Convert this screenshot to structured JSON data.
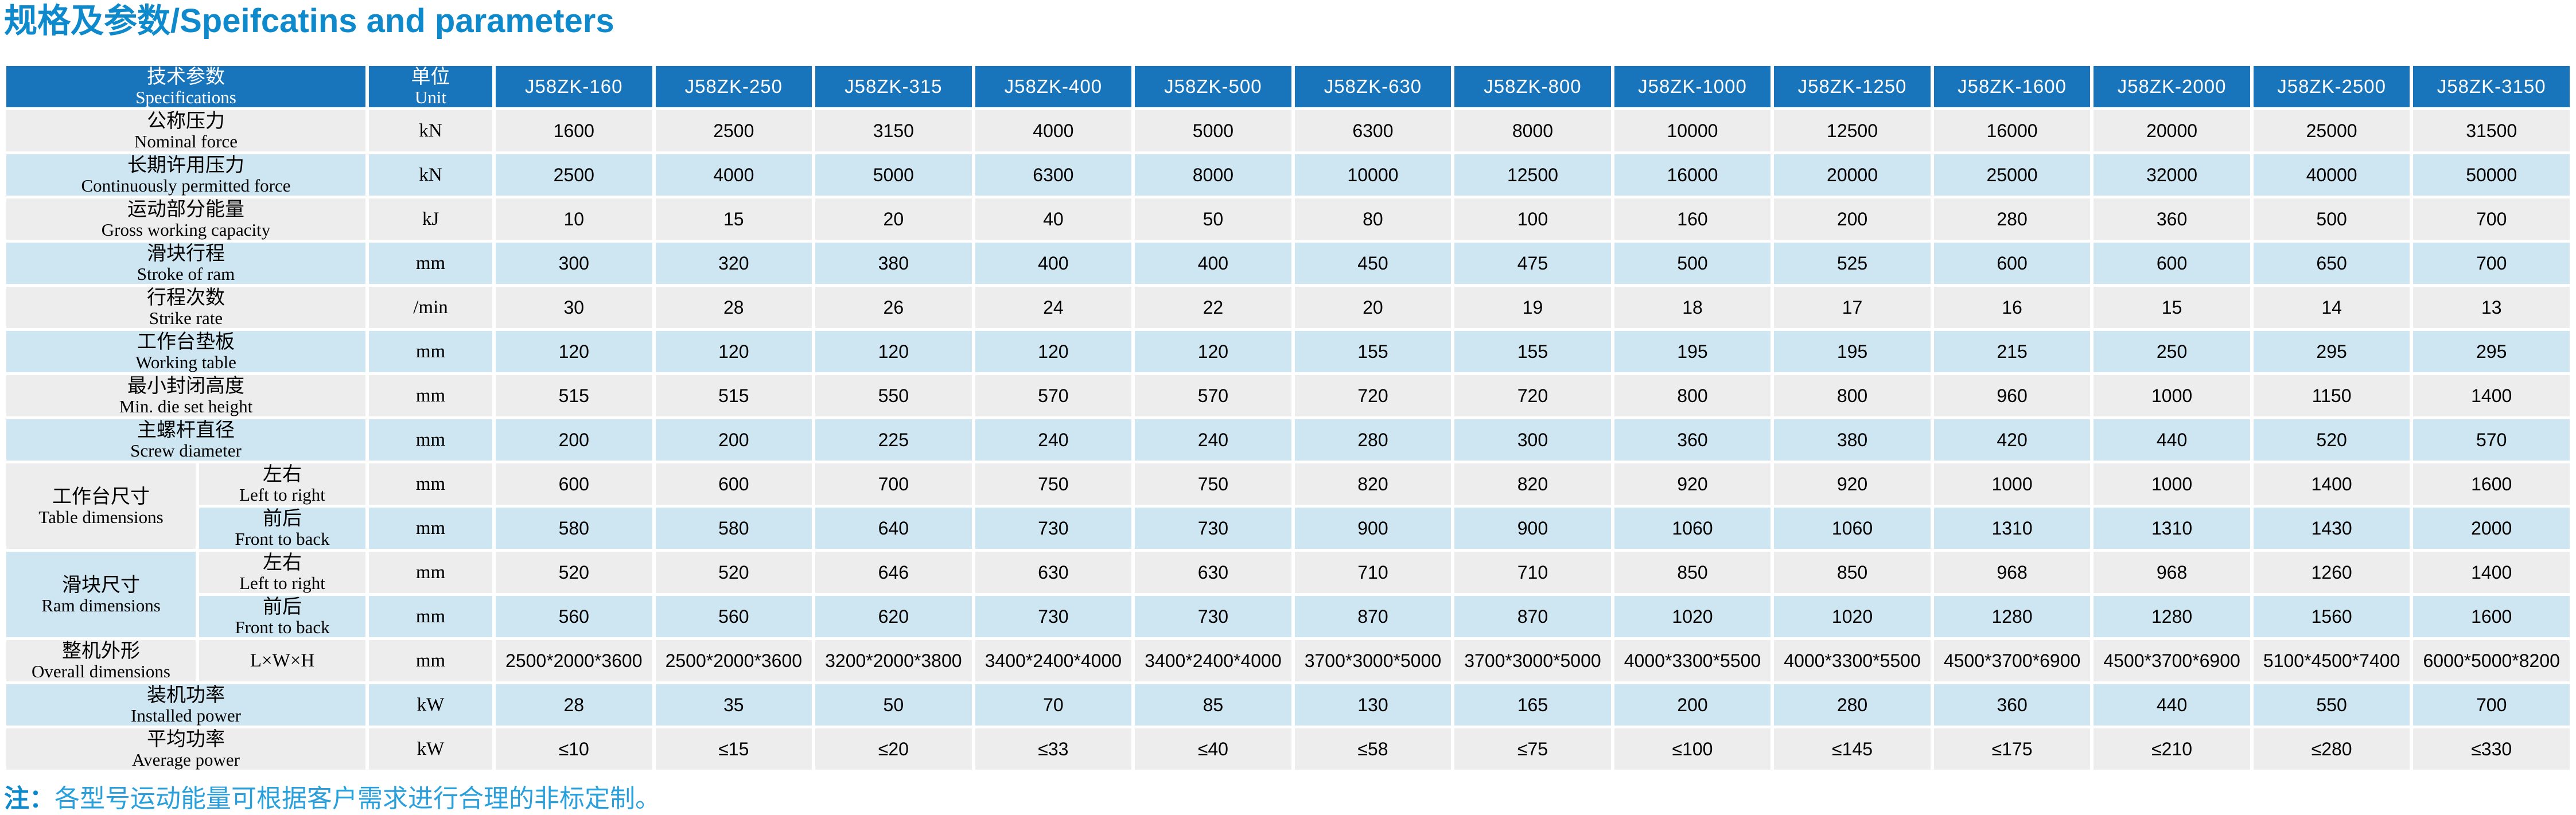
{
  "title": "规格及参数/Speifcatins and parameters",
  "table": {
    "spec_header": {
      "zh": "技术参数",
      "en": "Specifications"
    },
    "unit_header": {
      "zh": "单位",
      "en": "Unit"
    },
    "models": [
      "J58ZK-160",
      "J58ZK-250",
      "J58ZK-315",
      "J58ZK-400",
      "J58ZK-500",
      "J58ZK-630",
      "J58ZK-800",
      "J58ZK-1000",
      "J58ZK-1250",
      "J58ZK-1600",
      "J58ZK-2000",
      "J58ZK-2500",
      "J58ZK-3150"
    ],
    "rows": [
      {
        "type": "simple",
        "zh": "公称压力",
        "en": "Nominal force",
        "unit": "kN",
        "shade": "gray",
        "values": [
          "1600",
          "2500",
          "3150",
          "4000",
          "5000",
          "6300",
          "8000",
          "10000",
          "12500",
          "16000",
          "20000",
          "25000",
          "31500"
        ]
      },
      {
        "type": "simple",
        "zh": "长期许用压力",
        "en": "Continuously permitted force",
        "unit": "kN",
        "shade": "blue",
        "values": [
          "2500",
          "4000",
          "5000",
          "6300",
          "8000",
          "10000",
          "12500",
          "16000",
          "20000",
          "25000",
          "32000",
          "40000",
          "50000"
        ]
      },
      {
        "type": "simple",
        "zh": "运动部分能量",
        "en": "Gross working capacity",
        "unit": "kJ",
        "shade": "gray",
        "values": [
          "10",
          "15",
          "20",
          "40",
          "50",
          "80",
          "100",
          "160",
          "200",
          "280",
          "360",
          "500",
          "700"
        ]
      },
      {
        "type": "simple",
        "zh": "滑块行程",
        "en": "Stroke of ram",
        "unit": "mm",
        "shade": "blue",
        "values": [
          "300",
          "320",
          "380",
          "400",
          "400",
          "450",
          "475",
          "500",
          "525",
          "600",
          "600",
          "650",
          "700"
        ]
      },
      {
        "type": "simple",
        "zh": "行程次数",
        "en": "Strike rate",
        "unit": "/min",
        "shade": "gray",
        "values": [
          "30",
          "28",
          "26",
          "24",
          "22",
          "20",
          "19",
          "18",
          "17",
          "16",
          "15",
          "14",
          "13"
        ]
      },
      {
        "type": "simple",
        "zh": "工作台垫板",
        "en": "Working table",
        "unit": "mm",
        "shade": "blue",
        "values": [
          "120",
          "120",
          "120",
          "120",
          "120",
          "155",
          "155",
          "195",
          "195",
          "215",
          "250",
          "295",
          "295"
        ]
      },
      {
        "type": "simple",
        "zh": "最小封闭高度",
        "en": "Min. die set height",
        "unit": "mm",
        "shade": "gray",
        "values": [
          "515",
          "515",
          "550",
          "570",
          "570",
          "720",
          "720",
          "800",
          "800",
          "960",
          "1000",
          "1150",
          "1400"
        ]
      },
      {
        "type": "simple",
        "zh": "主螺杆直径",
        "en": "Screw diameter",
        "unit": "mm",
        "shade": "blue",
        "values": [
          "200",
          "200",
          "225",
          "240",
          "240",
          "280",
          "300",
          "360",
          "380",
          "420",
          "440",
          "520",
          "570"
        ]
      },
      {
        "type": "group-first",
        "group_zh": "工作台尺寸",
        "group_en": "Table dimensions",
        "group_shade": "gray",
        "zh": "左右",
        "en": "Left to right",
        "unit": "mm",
        "shade": "gray",
        "values": [
          "600",
          "600",
          "700",
          "750",
          "750",
          "820",
          "820",
          "920",
          "920",
          "1000",
          "1000",
          "1400",
          "1600"
        ]
      },
      {
        "type": "group-second",
        "zh": "前后",
        "en": "Front to back",
        "unit": "mm",
        "shade": "blue",
        "values": [
          "580",
          "580",
          "640",
          "730",
          "730",
          "900",
          "900",
          "1060",
          "1060",
          "1310",
          "1310",
          "1430",
          "2000"
        ]
      },
      {
        "type": "group-first",
        "group_zh": "滑块尺寸",
        "group_en": "Ram dimensions",
        "group_shade": "blue",
        "zh": "左右",
        "en": "Left to right",
        "unit": "mm",
        "shade": "gray",
        "values": [
          "520",
          "520",
          "646",
          "630",
          "630",
          "710",
          "710",
          "850",
          "850",
          "968",
          "968",
          "1260",
          "1400"
        ]
      },
      {
        "type": "group-second",
        "zh": "前后",
        "en": "Front to back",
        "unit": "mm",
        "shade": "blue",
        "values": [
          "560",
          "560",
          "620",
          "730",
          "730",
          "870",
          "870",
          "1020",
          "1020",
          "1280",
          "1280",
          "1560",
          "1600"
        ]
      },
      {
        "type": "sub",
        "zh": "整机外形",
        "en": "Overall dimensions",
        "sub": "L×W×H",
        "unit": "mm",
        "shade": "gray",
        "values": [
          "2500*2000*3600",
          "2500*2000*3600",
          "3200*2000*3800",
          "3400*2400*4000",
          "3400*2400*4000",
          "3700*3000*5000",
          "3700*3000*5000",
          "4000*3300*5500",
          "4000*3300*5500",
          "4500*3700*6900",
          "4500*3700*6900",
          "5100*4500*7400",
          "6000*5000*8200"
        ]
      },
      {
        "type": "simple",
        "zh": "装机功率",
        "en": "Installed power",
        "unit": "kW",
        "shade": "blue",
        "values": [
          "28",
          "35",
          "50",
          "70",
          "85",
          "130",
          "165",
          "200",
          "280",
          "360",
          "440",
          "550",
          "700"
        ]
      },
      {
        "type": "simple",
        "zh": "平均功率",
        "en": "Average power",
        "unit": "kW",
        "shade": "gray",
        "values": [
          "≤10",
          "≤15",
          "≤20",
          "≤33",
          "≤40",
          "≤58",
          "≤75",
          "≤100",
          "≤145",
          "≤175",
          "≤210",
          "≤280",
          "≤330"
        ]
      }
    ]
  },
  "note": {
    "prefix": "注：",
    "text": "各型号运动能量可根据客户需求进行合理的非标定制。"
  },
  "colors": {
    "header_blue": "#1875BC",
    "row_gray": "#EDEDED",
    "row_blue": "#CDE6F2",
    "title_blue": "#0E8ACC",
    "note_blue": "#29A0DB"
  }
}
